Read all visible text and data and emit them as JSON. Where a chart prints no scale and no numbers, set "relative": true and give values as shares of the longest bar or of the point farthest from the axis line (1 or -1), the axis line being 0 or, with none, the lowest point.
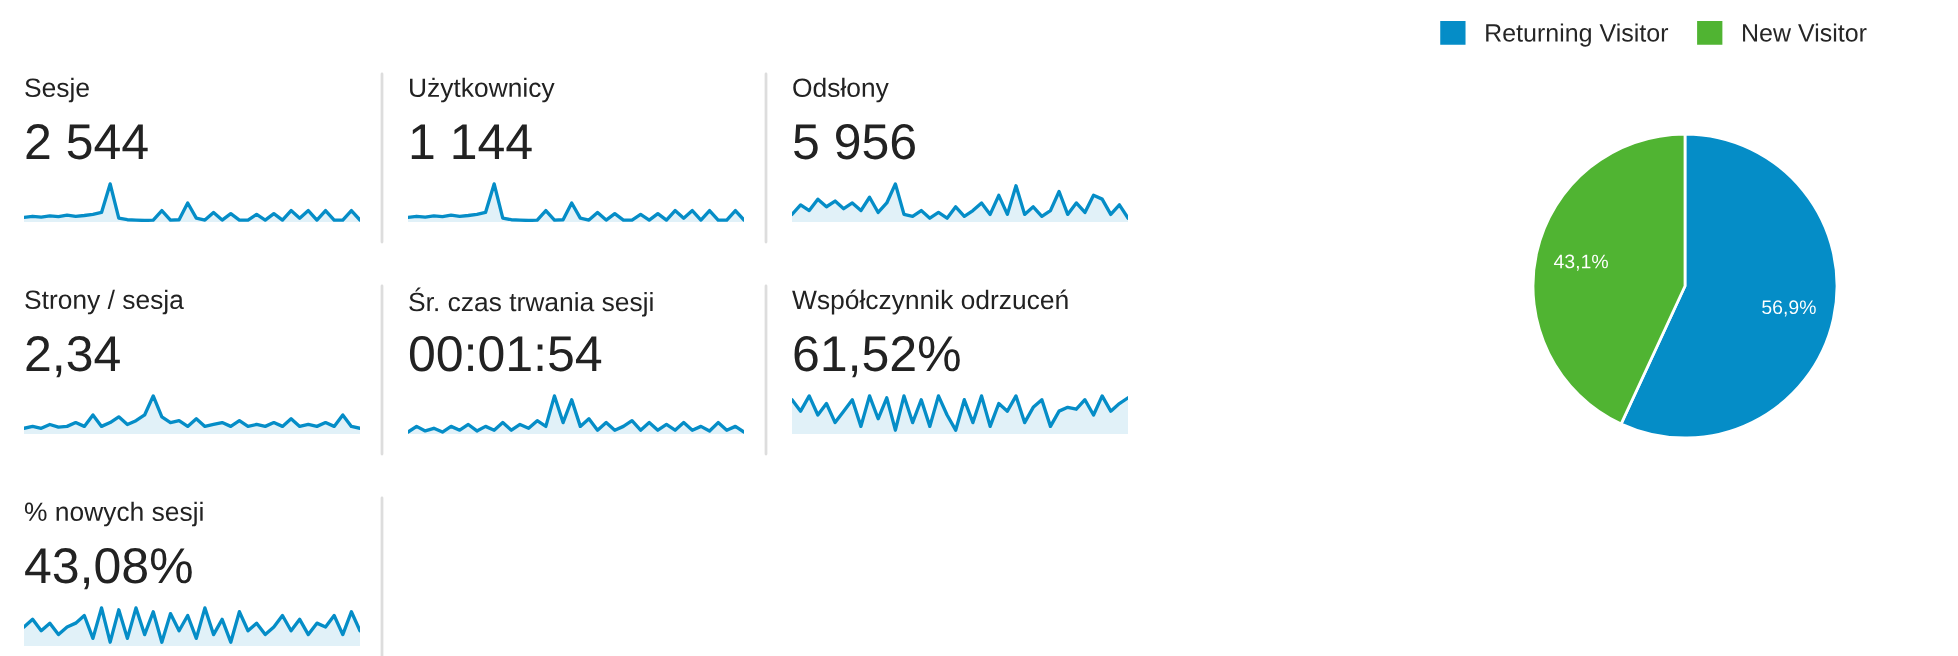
{
  "chart_data": [
    {
      "type": "area",
      "title": "Sesje",
      "subtitle": "2 544",
      "relative": true,
      "categories": [
        null,
        null,
        null,
        null,
        null,
        null,
        null,
        null,
        null,
        null,
        null,
        null,
        null,
        null,
        null,
        null,
        null,
        null,
        null,
        null,
        null,
        null,
        null,
        null,
        null,
        null,
        null,
        null,
        null,
        null,
        null,
        null,
        null,
        null,
        null,
        null,
        null,
        null,
        null,
        null
      ],
      "series": [
        {
          "color": "#058dc7",
          "values": [
            0.12,
            0.15,
            0.13,
            0.16,
            0.14,
            0.18,
            0.15,
            0.17,
            0.2,
            0.25,
            1.0,
            0.1,
            0.06,
            0.05,
            0.04,
            0.05,
            0.3,
            0.05,
            0.06,
            0.5,
            0.1,
            0.05,
            0.25,
            0.05,
            0.22,
            0.05,
            0.05,
            0.2,
            0.05,
            0.22,
            0.05,
            0.3,
            0.1,
            0.3,
            0.05,
            0.3,
            0.05,
            0.05,
            0.3,
            0.05
          ]
        }
      ]
    },
    {
      "type": "area",
      "title": "Użytkownicy",
      "subtitle": "1 144",
      "relative": true,
      "categories": [
        null,
        null,
        null,
        null,
        null,
        null,
        null,
        null,
        null,
        null,
        null,
        null,
        null,
        null,
        null,
        null,
        null,
        null,
        null,
        null,
        null,
        null,
        null,
        null,
        null,
        null,
        null,
        null,
        null,
        null,
        null,
        null,
        null,
        null,
        null,
        null,
        null,
        null,
        null,
        null
      ],
      "series": [
        {
          "color": "#058dc7",
          "values": [
            0.12,
            0.15,
            0.13,
            0.16,
            0.14,
            0.18,
            0.15,
            0.17,
            0.2,
            0.25,
            1.0,
            0.1,
            0.06,
            0.05,
            0.04,
            0.05,
            0.3,
            0.05,
            0.06,
            0.5,
            0.1,
            0.05,
            0.25,
            0.05,
            0.22,
            0.05,
            0.05,
            0.2,
            0.05,
            0.22,
            0.05,
            0.3,
            0.1,
            0.3,
            0.05,
            0.3,
            0.05,
            0.05,
            0.3,
            0.05
          ]
        }
      ]
    },
    {
      "type": "area",
      "title": "Odsłony",
      "subtitle": "5 956",
      "relative": true,
      "categories": [
        null,
        null,
        null,
        null,
        null,
        null,
        null,
        null,
        null,
        null,
        null,
        null,
        null,
        null,
        null,
        null,
        null,
        null,
        null,
        null,
        null,
        null,
        null,
        null,
        null,
        null,
        null,
        null,
        null,
        null,
        null,
        null,
        null,
        null,
        null,
        null,
        null,
        null,
        null,
        null
      ],
      "series": [
        {
          "color": "#058dc7",
          "values": [
            0.2,
            0.45,
            0.3,
            0.6,
            0.4,
            0.55,
            0.35,
            0.5,
            0.3,
            0.65,
            0.25,
            0.5,
            1.0,
            0.2,
            0.15,
            0.3,
            0.1,
            0.25,
            0.1,
            0.4,
            0.15,
            0.3,
            0.5,
            0.2,
            0.7,
            0.2,
            0.95,
            0.2,
            0.4,
            0.15,
            0.3,
            0.8,
            0.2,
            0.5,
            0.25,
            0.7,
            0.6,
            0.2,
            0.45,
            0.1
          ]
        }
      ]
    },
    {
      "type": "area",
      "title": "Strony / sesja",
      "subtitle": "2,34",
      "relative": true,
      "categories": [
        null,
        null,
        null,
        null,
        null,
        null,
        null,
        null,
        null,
        null,
        null,
        null,
        null,
        null,
        null,
        null,
        null,
        null,
        null,
        null,
        null,
        null,
        null,
        null,
        null,
        null,
        null,
        null,
        null,
        null,
        null,
        null,
        null,
        null,
        null,
        null,
        null,
        null,
        null,
        null
      ],
      "series": [
        {
          "color": "#058dc7",
          "values": [
            0.15,
            0.2,
            0.15,
            0.25,
            0.18,
            0.2,
            0.3,
            0.2,
            0.5,
            0.2,
            0.3,
            0.45,
            0.25,
            0.35,
            0.5,
            1.0,
            0.45,
            0.3,
            0.35,
            0.2,
            0.4,
            0.2,
            0.25,
            0.3,
            0.2,
            0.35,
            0.2,
            0.25,
            0.2,
            0.3,
            0.2,
            0.4,
            0.2,
            0.25,
            0.2,
            0.3,
            0.2,
            0.5,
            0.2,
            0.15
          ]
        }
      ]
    },
    {
      "type": "area",
      "title": "Śr. czas trwania sesji",
      "subtitle": "00:01:54",
      "relative": true,
      "categories": [
        null,
        null,
        null,
        null,
        null,
        null,
        null,
        null,
        null,
        null,
        null,
        null,
        null,
        null,
        null,
        null,
        null,
        null,
        null,
        null,
        null,
        null,
        null,
        null,
        null,
        null,
        null,
        null,
        null,
        null,
        null,
        null,
        null,
        null,
        null,
        null,
        null,
        null,
        null,
        null
      ],
      "series": [
        {
          "color": "#058dc7",
          "values": [
            0.05,
            0.2,
            0.08,
            0.15,
            0.05,
            0.2,
            0.1,
            0.25,
            0.08,
            0.2,
            0.1,
            0.3,
            0.1,
            0.25,
            0.15,
            0.35,
            0.2,
            1.0,
            0.3,
            0.9,
            0.2,
            0.4,
            0.1,
            0.3,
            0.1,
            0.2,
            0.35,
            0.1,
            0.3,
            0.1,
            0.25,
            0.1,
            0.3,
            0.1,
            0.2,
            0.08,
            0.3,
            0.1,
            0.2,
            0.05
          ]
        }
      ]
    },
    {
      "type": "area",
      "title": "Współczynnik odrzuceń",
      "subtitle": "61,52%",
      "relative": true,
      "categories": [
        null,
        null,
        null,
        null,
        null,
        null,
        null,
        null,
        null,
        null,
        null,
        null,
        null,
        null,
        null,
        null,
        null,
        null,
        null,
        null,
        null,
        null,
        null,
        null,
        null,
        null,
        null,
        null,
        null,
        null,
        null,
        null,
        null,
        null,
        null,
        null,
        null,
        null,
        null,
        null
      ],
      "series": [
        {
          "color": "#058dc7",
          "values": [
            0.9,
            0.6,
            1.0,
            0.5,
            0.8,
            0.3,
            0.6,
            0.9,
            0.2,
            1.0,
            0.4,
            0.95,
            0.1,
            1.0,
            0.3,
            0.9,
            0.2,
            1.0,
            0.5,
            0.1,
            0.9,
            0.3,
            1.0,
            0.2,
            0.8,
            0.6,
            1.0,
            0.3,
            0.7,
            0.9,
            0.2,
            0.6,
            0.7,
            0.65,
            0.9,
            0.5,
            1.0,
            0.6,
            0.8,
            0.95
          ]
        }
      ]
    },
    {
      "type": "area",
      "title": "% nowych sesji",
      "subtitle": "43,08%",
      "relative": true,
      "categories": [
        null,
        null,
        null,
        null,
        null,
        null,
        null,
        null,
        null,
        null,
        null,
        null,
        null,
        null,
        null,
        null,
        null,
        null,
        null,
        null,
        null,
        null,
        null,
        null,
        null,
        null,
        null,
        null,
        null,
        null,
        null,
        null,
        null,
        null,
        null,
        null,
        null,
        null,
        null,
        null
      ],
      "series": [
        {
          "color": "#058dc7",
          "values": [
            0.5,
            0.7,
            0.4,
            0.6,
            0.3,
            0.5,
            0.6,
            0.8,
            0.2,
            1.0,
            0.1,
            0.95,
            0.2,
            1.0,
            0.3,
            0.9,
            0.1,
            0.85,
            0.4,
            0.8,
            0.2,
            1.0,
            0.3,
            0.7,
            0.1,
            0.9,
            0.4,
            0.6,
            0.3,
            0.5,
            0.8,
            0.4,
            0.7,
            0.3,
            0.6,
            0.5,
            0.8,
            0.3,
            0.9,
            0.4
          ]
        }
      ]
    },
    {
      "type": "pie",
      "categories": [
        "Returning Visitor",
        "New Visitor"
      ],
      "values": [
        56.9,
        43.1
      ],
      "colors": [
        "#058dc7",
        "#50b432"
      ],
      "value_labels": [
        "56,9%",
        "43,1%"
      ],
      "legend": "top"
    }
  ]
}
